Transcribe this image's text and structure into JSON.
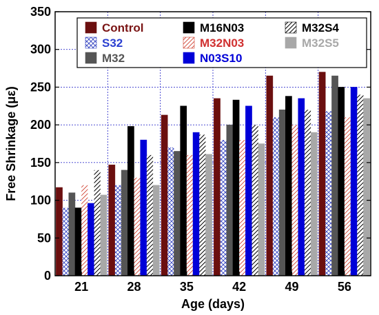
{
  "chart_data": {
    "type": "bar",
    "title": "",
    "xlabel": "Age (days)",
    "ylabel": "Free Shrinkage (με)",
    "ylim": [
      0,
      350
    ],
    "yticks": [
      "0",
      "50",
      "100",
      "150",
      "200",
      "250",
      "300",
      "350"
    ],
    "grid": true,
    "legend_placement": "top",
    "categories": [
      "21",
      "28",
      "35",
      "42",
      "49",
      "56"
    ],
    "series": [
      {
        "name": "Control",
        "color": "#6b0f0f",
        "label_color": "#7a1414",
        "pattern": "solid",
        "values": [
          117,
          147,
          213,
          235,
          265,
          270
        ]
      },
      {
        "name": "S32",
        "color": "#3040c0",
        "label_color": "#2a3fd0",
        "pattern": "crosshatch",
        "values": [
          90,
          120,
          170,
          180,
          210,
          218
        ]
      },
      {
        "name": "M32",
        "color": "#555555",
        "label_color": "#555555",
        "pattern": "solid",
        "values": [
          110,
          140,
          165,
          200,
          220,
          265
        ]
      },
      {
        "name": "M16N03",
        "color": "#000000",
        "label_color": "#000000",
        "pattern": "solid",
        "values": [
          90,
          198,
          225,
          233,
          238,
          250
        ]
      },
      {
        "name": "M32N03",
        "color": "#d04030",
        "label_color": "#d03030",
        "pattern": "hatch",
        "values": [
          120,
          130,
          160,
          180,
          200,
          210
        ]
      },
      {
        "name": "N03S10",
        "color": "#0000d8",
        "label_color": "#0000d8",
        "pattern": "solid",
        "values": [
          96,
          180,
          190,
          225,
          235,
          250
        ]
      },
      {
        "name": "M32S4",
        "color": "#000000",
        "label_color": "#000000",
        "pattern": "hatch",
        "values": [
          140,
          160,
          187,
          200,
          220,
          240
        ]
      },
      {
        "name": "M32S5",
        "color": "#a8a8a8",
        "label_color": "#a8a8a8",
        "pattern": "solid",
        "values": [
          107,
          120,
          161,
          175,
          190,
          235
        ]
      }
    ]
  }
}
